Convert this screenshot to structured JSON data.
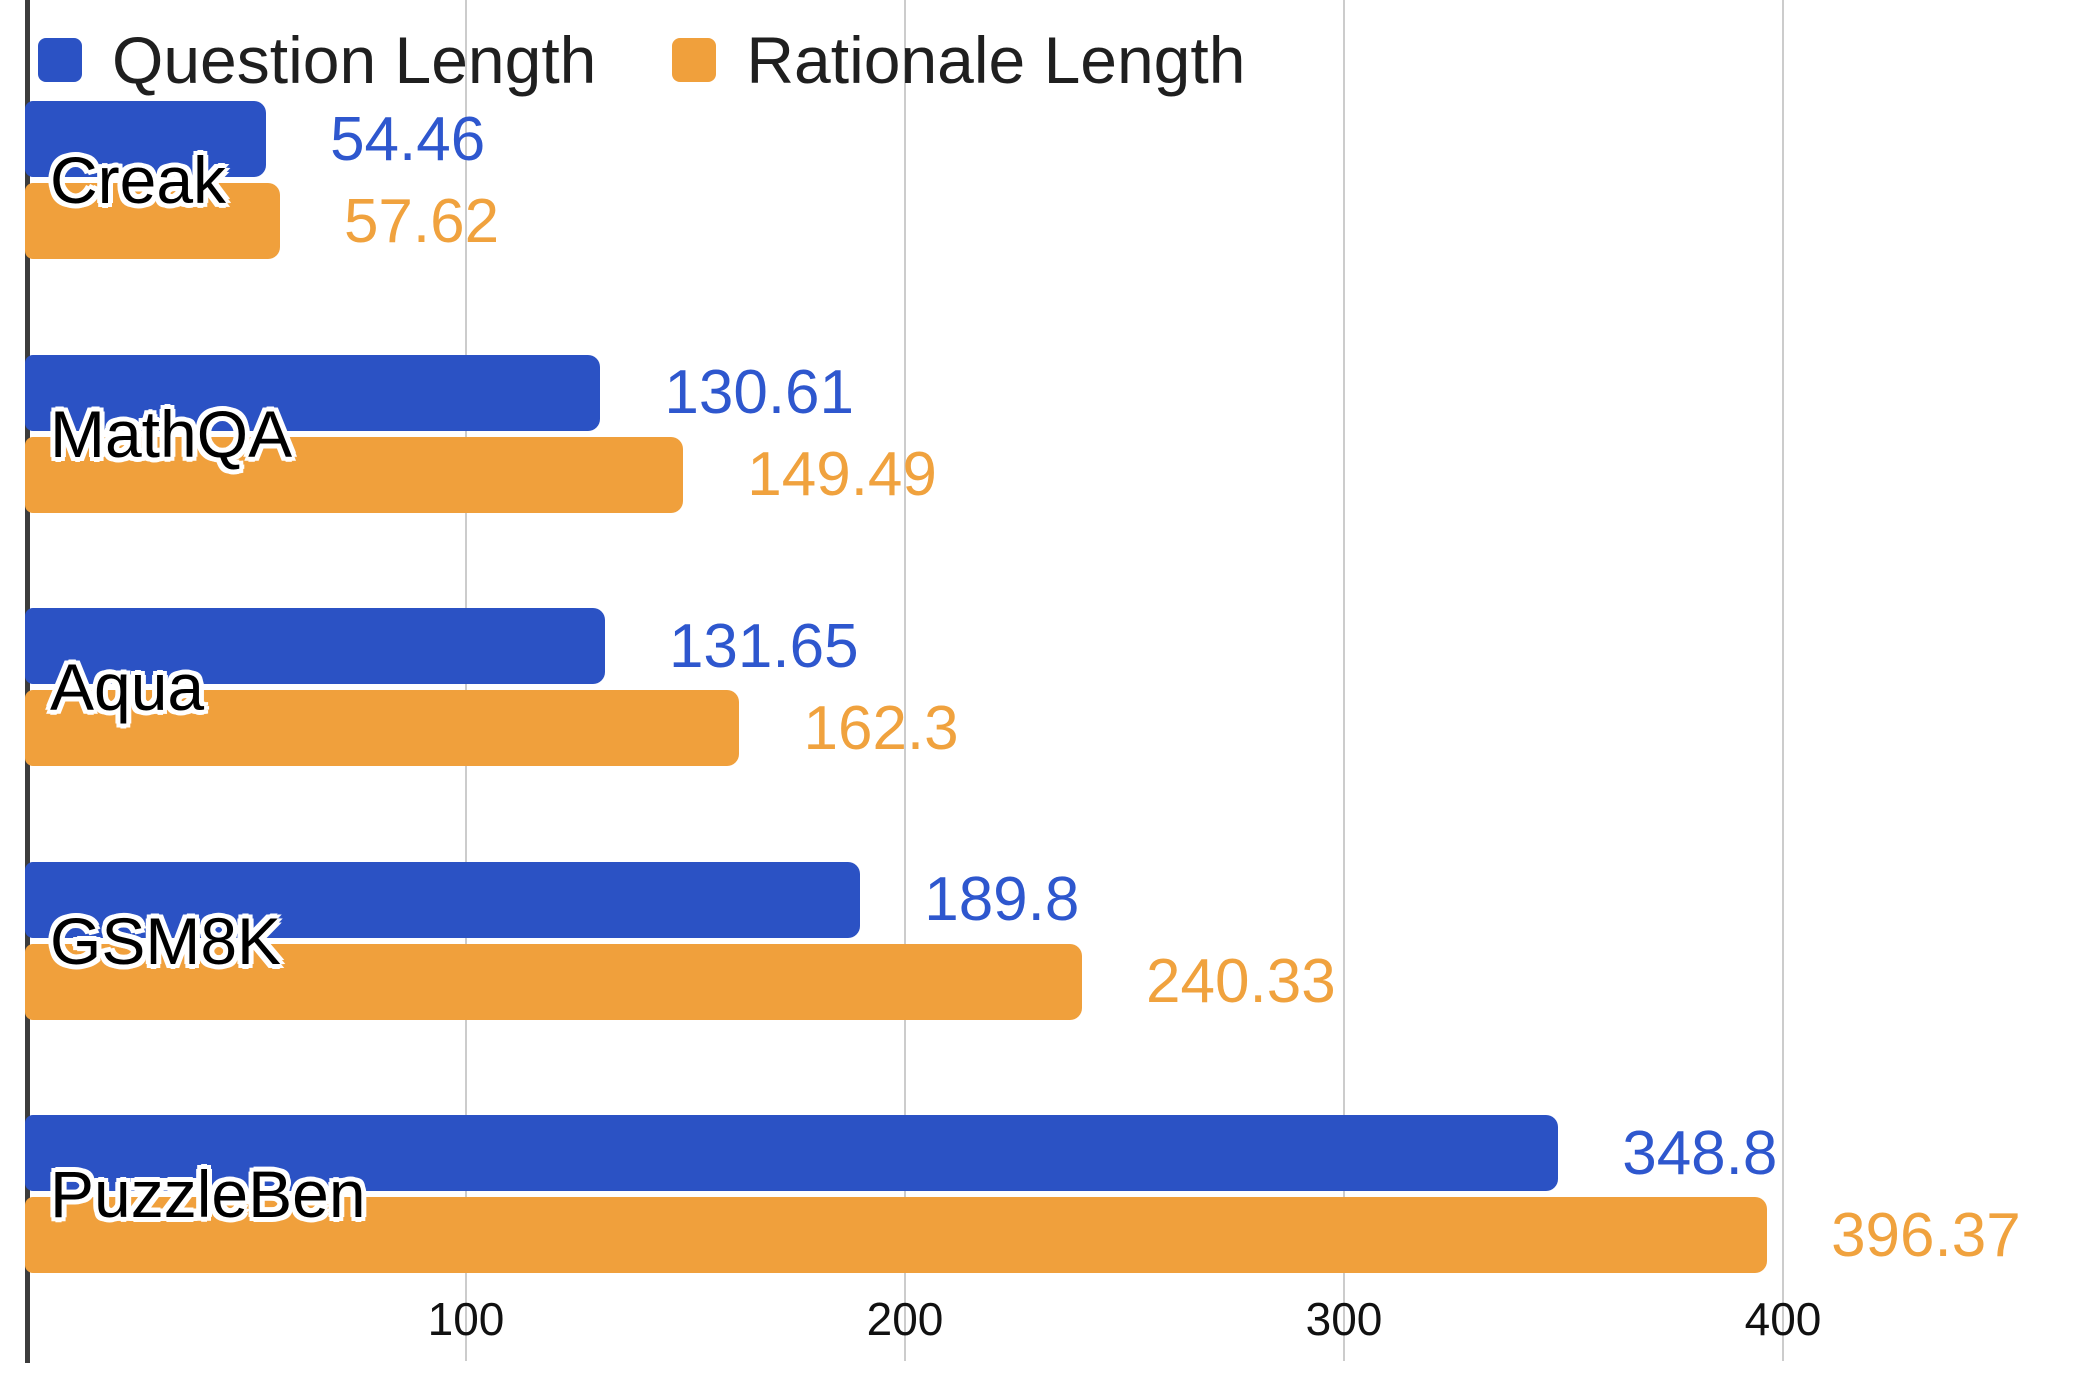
{
  "chart_data": {
    "type": "bar",
    "orientation": "horizontal",
    "title": "",
    "xlabel": "",
    "ylabel": "",
    "categories": [
      "Creak",
      "MathQA",
      "Aqua",
      "GSM8K",
      "PuzzleBen"
    ],
    "series": [
      {
        "name": "Question Length",
        "color": "#2B52C4",
        "label_color": "#2E57CE",
        "values": [
          54.46,
          130.61,
          131.65,
          189.8,
          348.8
        ]
      },
      {
        "name": "Rationale Length",
        "color": "#F0A03C",
        "label_color": "#F0A23E",
        "values": [
          57.62,
          149.49,
          162.3,
          240.33,
          396.37
        ]
      }
    ],
    "x_ticks": [
      100,
      200,
      300,
      400
    ],
    "xlim": [
      0,
      467
    ],
    "grid": true,
    "legend_position": "top-left",
    "value_labels_shown": true
  },
  "style": {
    "background": "#ffffff",
    "axis_color": "#3c3c3c",
    "gridline_color": "#cccccc",
    "tick_label_color": "#111111",
    "category_label_color": "#000000",
    "category_label_outline": "#ffffff",
    "legend_text_color": "#1f1f1f"
  }
}
